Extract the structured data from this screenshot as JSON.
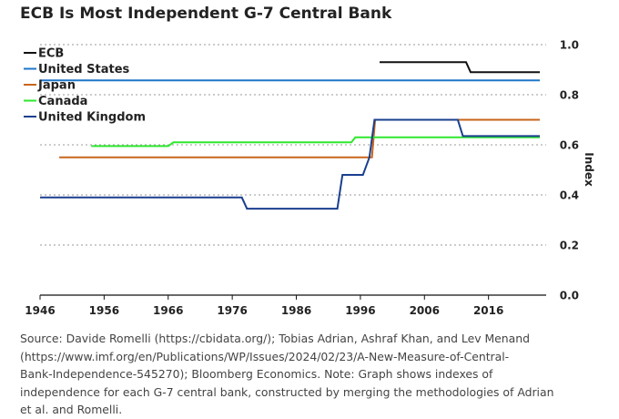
{
  "chart_data": {
    "type": "line",
    "title": "ECB Is Most Independent G-7 Central Bank",
    "ylabel": "Index",
    "xlabel": "",
    "xlim": [
      1946,
      2025
    ],
    "ylim": [
      0,
      1.0
    ],
    "x_ticks": [
      "1946",
      "1956",
      "1966",
      "1976",
      "1986",
      "1996",
      "2006",
      "2016"
    ],
    "y_ticks": [
      "0.0",
      "0.2",
      "0.4",
      "0.6",
      "0.8",
      "1.0"
    ],
    "grid": true,
    "legend_position": "top-left",
    "series": [
      {
        "name": "ECB",
        "color": "#111111",
        "x": [
          1999,
          2012.5,
          2013.2,
          2024
        ],
        "y": [
          0.93,
          0.93,
          0.89,
          0.89
        ]
      },
      {
        "name": "United States",
        "color": "#1f77c9",
        "x": [
          1946,
          2024
        ],
        "y": [
          0.857,
          0.857
        ]
      },
      {
        "name": "Japan",
        "color": "#c8651b",
        "x": [
          1949,
          1997.8,
          1998.3,
          2024
        ],
        "y": [
          0.55,
          0.55,
          0.7,
          0.7
        ]
      },
      {
        "name": "Canada",
        "color": "#2ee82e",
        "x": [
          1954,
          1966,
          1966.8,
          1994.6,
          1995.2,
          2024
        ],
        "y": [
          0.595,
          0.595,
          0.61,
          0.61,
          0.63,
          0.63
        ]
      },
      {
        "name": "United Kingdom",
        "color": "#1a3f8f",
        "x": [
          1946,
          1977.5,
          1978.3,
          1992.4,
          1993.2,
          1996.4,
          1997.4,
          1998.2,
          2011.2,
          2012,
          2024
        ],
        "y": [
          0.39,
          0.39,
          0.345,
          0.345,
          0.48,
          0.48,
          0.55,
          0.7,
          0.7,
          0.635,
          0.635
        ]
      }
    ]
  },
  "source": {
    "lines": [
      "Source: Davide Romelli (https://cbidata.org/); Tobias Adrian, Ashraf Khan, and Lev Menand",
      "(https://www.imf.org/en/Publications/WP/Issues/2024/02/23/A-New-Measure-of-Central-",
      "Bank-Independence-545270); Bloomberg Economics. Note: Graph shows indexes of",
      "independence for each G-7 central bank, constructed by merging the methodologies of Adrian",
      "et al. and Romelli."
    ]
  }
}
